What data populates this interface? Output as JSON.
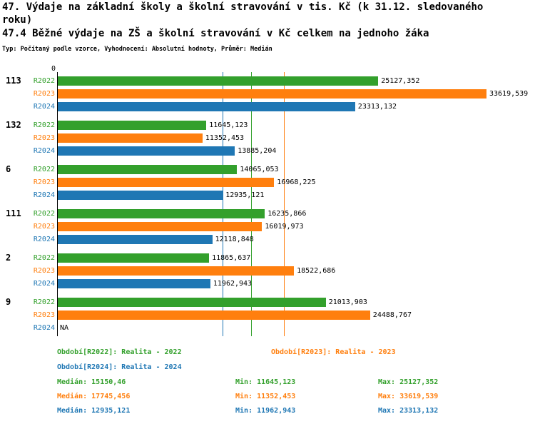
{
  "colors": {
    "r2022": "#33A02C",
    "r2023": "#FF7F0E",
    "r2024": "#1F77B4",
    "axis": "#000000"
  },
  "chart_data": {
    "type": "bar",
    "orientation": "horizontal",
    "title": "47. Výdaje na základní školy a školní stravování v tis. Kč (k 31.12. sledovaného roku)",
    "subtitle": "47.4 Běžné výdaje na ZŠ a školní stravování v Kč celkem na jednoho žáka",
    "meta": "Typ: Počítaný podle vzorce, Vyhodnocení: Absolutní hodnoty, Průměr: Medián",
    "axis_zero_label": "0",
    "xlim": [
      0,
      33620
    ],
    "grid": false,
    "series_names": [
      "R2022",
      "R2023",
      "R2024"
    ],
    "groups": [
      {
        "label": "113",
        "bars": [
          {
            "series": "R2022",
            "color_key": "r2022",
            "value": 25127.352,
            "value_label": "25127,352"
          },
          {
            "series": "R2023",
            "color_key": "r2023",
            "value": 33619.539,
            "value_label": "33619,539"
          },
          {
            "series": "R2024",
            "color_key": "r2024",
            "value": 23313.132,
            "value_label": "23313,132"
          }
        ]
      },
      {
        "label": "132",
        "bars": [
          {
            "series": "R2022",
            "color_key": "r2022",
            "value": 11645.123,
            "value_label": "11645,123"
          },
          {
            "series": "R2023",
            "color_key": "r2023",
            "value": 11352.453,
            "value_label": "11352,453"
          },
          {
            "series": "R2024",
            "color_key": "r2024",
            "value": 13885.204,
            "value_label": "13885,204"
          }
        ]
      },
      {
        "label": "6",
        "bars": [
          {
            "series": "R2022",
            "color_key": "r2022",
            "value": 14065.053,
            "value_label": "14065,053"
          },
          {
            "series": "R2023",
            "color_key": "r2023",
            "value": 16968.225,
            "value_label": "16968,225"
          },
          {
            "series": "R2024",
            "color_key": "r2024",
            "value": 12935.121,
            "value_label": "12935,121"
          }
        ]
      },
      {
        "label": "111",
        "bars": [
          {
            "series": "R2022",
            "color_key": "r2022",
            "value": 16235.866,
            "value_label": "16235,866"
          },
          {
            "series": "R2023",
            "color_key": "r2023",
            "value": 16019.973,
            "value_label": "16019,973"
          },
          {
            "series": "R2024",
            "color_key": "r2024",
            "value": 12118.848,
            "value_label": "12118,848"
          }
        ]
      },
      {
        "label": "2",
        "bars": [
          {
            "series": "R2022",
            "color_key": "r2022",
            "value": 11865.637,
            "value_label": "11865,637"
          },
          {
            "series": "R2023",
            "color_key": "r2023",
            "value": 18522.686,
            "value_label": "18522,686"
          },
          {
            "series": "R2024",
            "color_key": "r2024",
            "value": 11962.943,
            "value_label": "11962,943"
          }
        ]
      },
      {
        "label": "9",
        "bars": [
          {
            "series": "R2022",
            "color_key": "r2022",
            "value": 21013.903,
            "value_label": "21013,903"
          },
          {
            "series": "R2023",
            "color_key": "r2023",
            "value": 24488.767,
            "value_label": "24488,767"
          },
          {
            "series": "R2024",
            "color_key": "r2024",
            "value": null,
            "value_label": "NA"
          }
        ]
      }
    ],
    "median_lines": [
      {
        "series": "R2022",
        "color_key": "r2022",
        "value": 15150.46
      },
      {
        "series": "R2023",
        "color_key": "r2023",
        "value": 17745.456
      },
      {
        "series": "R2024",
        "color_key": "r2024",
        "value": 12935.121
      }
    ],
    "legend": [
      {
        "color_key": "r2022",
        "label": "Období[R2022]: Realita - 2022"
      },
      {
        "color_key": "r2023",
        "label": "Období[R2023]: Realita - 2023"
      },
      {
        "color_key": "r2024",
        "label": "Období[R2024]: Realita - 2024"
      }
    ],
    "stats": [
      {
        "color_key": "r2022",
        "median": "Medián: 15150,46",
        "min": "Min: 11645,123",
        "max": "Max: 25127,352"
      },
      {
        "color_key": "r2023",
        "median": "Medián: 17745,456",
        "min": "Min: 11352,453",
        "max": "Max: 33619,539"
      },
      {
        "color_key": "r2024",
        "median": "Medián: 12935,121",
        "min": "Min: 11962,943",
        "max": "Max: 23313,132"
      }
    ]
  }
}
